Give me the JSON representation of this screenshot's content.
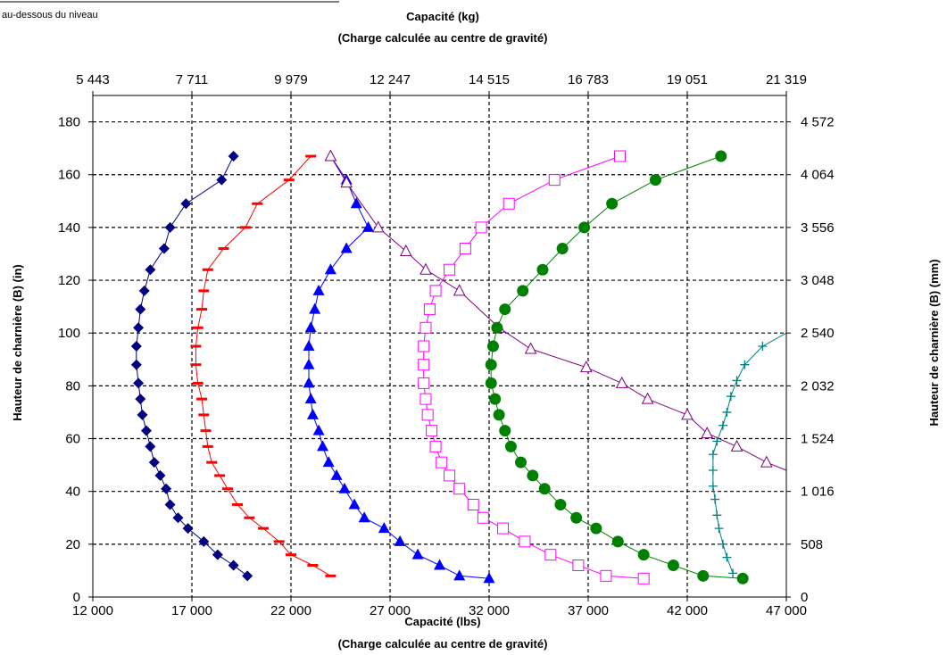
{
  "note": "au-dessous du niveau",
  "chart_data": {
    "type": "scatter",
    "title_top": [
      "Capacité (kg)",
      "(Charge calculée au centre de gravité)"
    ],
    "title_bottom": [
      "Capacité (lbs)",
      "(Charge calculée au centre de gravité)"
    ],
    "ylabel_left": "Hauteur de charnière (B) (in)",
    "ylabel_right": "Hauteur de charnière (B) (mm)",
    "xlim": [
      12000,
      47000
    ],
    "ylim": [
      0,
      190
    ],
    "grid": true,
    "x_ticks": [
      "12 000",
      "17 000",
      "22 000",
      "27 000",
      "32 000",
      "37 000",
      "42 000",
      "47 000"
    ],
    "x_top_ticks": [
      "5 443",
      "7 711",
      "9 979",
      "12 247",
      "14 515",
      "16 783",
      "19 051",
      "21 319"
    ],
    "y_ticks": [
      "0",
      "20",
      "40",
      "60",
      "80",
      "100",
      "120",
      "140",
      "160",
      "180"
    ],
    "y_right_ticks": [
      "0",
      "508",
      "1 016",
      "1 524",
      "2 032",
      "2 540",
      "3 048",
      "3 556",
      "4 064",
      "4 572"
    ],
    "series": [
      {
        "marker": "diamond",
        "color": "#000080",
        "points": [
          [
            19100,
            167
          ],
          [
            18500,
            158
          ],
          [
            16700,
            149
          ],
          [
            15900,
            140
          ],
          [
            15600,
            132
          ],
          [
            14900,
            124
          ],
          [
            14600,
            116
          ],
          [
            14400,
            109
          ],
          [
            14300,
            102
          ],
          [
            14200,
            95
          ],
          [
            14200,
            88
          ],
          [
            14300,
            81
          ],
          [
            14400,
            75
          ],
          [
            14500,
            69
          ],
          [
            14700,
            63
          ],
          [
            14900,
            57
          ],
          [
            15100,
            51
          ],
          [
            15400,
            46
          ],
          [
            15700,
            41
          ],
          [
            15900,
            35
          ],
          [
            16300,
            30
          ],
          [
            16800,
            26
          ],
          [
            17600,
            21
          ],
          [
            18300,
            16
          ],
          [
            19100,
            12
          ],
          [
            19800,
            8
          ]
        ]
      },
      {
        "marker": "dash",
        "color": "#ff0000",
        "points": [
          [
            23000,
            167
          ],
          [
            21900,
            158
          ],
          [
            20300,
            149
          ],
          [
            19700,
            140
          ],
          [
            18600,
            132
          ],
          [
            17800,
            124
          ],
          [
            17600,
            116
          ],
          [
            17500,
            109
          ],
          [
            17300,
            102
          ],
          [
            17200,
            95
          ],
          [
            17200,
            88
          ],
          [
            17300,
            81
          ],
          [
            17500,
            75
          ],
          [
            17600,
            69
          ],
          [
            17700,
            63
          ],
          [
            17800,
            57
          ],
          [
            18000,
            51
          ],
          [
            18400,
            46
          ],
          [
            18800,
            41
          ],
          [
            19300,
            35
          ],
          [
            19900,
            30
          ],
          [
            20600,
            26
          ],
          [
            21400,
            21
          ],
          [
            22000,
            16
          ],
          [
            23100,
            12
          ],
          [
            24000,
            8
          ]
        ]
      },
      {
        "marker": "triangle",
        "color": "#0000ff",
        "points": [
          [
            24000,
            167
          ],
          [
            24800,
            158
          ],
          [
            25300,
            149
          ],
          [
            25900,
            140
          ],
          [
            24800,
            132
          ],
          [
            24000,
            124
          ],
          [
            23400,
            116
          ],
          [
            23200,
            109
          ],
          [
            23000,
            102
          ],
          [
            22900,
            95
          ],
          [
            22900,
            88
          ],
          [
            22900,
            81
          ],
          [
            23000,
            75
          ],
          [
            23100,
            69
          ],
          [
            23400,
            63
          ],
          [
            23600,
            57
          ],
          [
            23900,
            51
          ],
          [
            24300,
            46
          ],
          [
            24700,
            41
          ],
          [
            25200,
            35
          ],
          [
            25700,
            30
          ],
          [
            26700,
            26
          ],
          [
            27500,
            21
          ],
          [
            28400,
            16
          ],
          [
            29500,
            12
          ],
          [
            30500,
            8
          ],
          [
            32000,
            7
          ]
        ]
      },
      {
        "marker": "triangle-open",
        "color": "#800080",
        "points": [
          [
            24000,
            167
          ],
          [
            24800,
            157
          ],
          [
            26400,
            140
          ],
          [
            27800,
            131
          ],
          [
            28800,
            124
          ],
          [
            30500,
            116
          ],
          [
            32500,
            102
          ],
          [
            34100,
            94
          ],
          [
            36900,
            87
          ],
          [
            38700,
            81
          ],
          [
            40000,
            75
          ],
          [
            42000,
            69
          ],
          [
            43000,
            62
          ],
          [
            44500,
            57
          ],
          [
            46000,
            51
          ],
          [
            47000,
            48
          ]
        ]
      },
      {
        "marker": "square-open",
        "color": "#ff00ff",
        "points": [
          [
            38600,
            167
          ],
          [
            35300,
            158
          ],
          [
            33000,
            149
          ],
          [
            31600,
            140
          ],
          [
            30800,
            132
          ],
          [
            30000,
            124
          ],
          [
            29300,
            116
          ],
          [
            29000,
            109
          ],
          [
            28800,
            102
          ],
          [
            28700,
            95
          ],
          [
            28700,
            88
          ],
          [
            28700,
            81
          ],
          [
            28800,
            75
          ],
          [
            28900,
            69
          ],
          [
            29100,
            63
          ],
          [
            29300,
            57
          ],
          [
            29600,
            51
          ],
          [
            30000,
            46
          ],
          [
            30500,
            41
          ],
          [
            31200,
            35
          ],
          [
            31700,
            30
          ],
          [
            32700,
            26
          ],
          [
            33800,
            21
          ],
          [
            35100,
            16
          ],
          [
            36500,
            12
          ],
          [
            37900,
            8
          ],
          [
            39800,
            7
          ]
        ]
      },
      {
        "marker": "circle",
        "color": "#008000",
        "points": [
          [
            43700,
            167
          ],
          [
            40400,
            158
          ],
          [
            38200,
            149
          ],
          [
            36800,
            140
          ],
          [
            35700,
            132
          ],
          [
            34700,
            124
          ],
          [
            33700,
            116
          ],
          [
            32800,
            109
          ],
          [
            32400,
            102
          ],
          [
            32200,
            95
          ],
          [
            32100,
            88
          ],
          [
            32100,
            81
          ],
          [
            32300,
            75
          ],
          [
            32500,
            69
          ],
          [
            32800,
            63
          ],
          [
            33100,
            57
          ],
          [
            33600,
            51
          ],
          [
            34200,
            46
          ],
          [
            34800,
            41
          ],
          [
            35600,
            35
          ],
          [
            36400,
            30
          ],
          [
            37400,
            26
          ],
          [
            38500,
            21
          ],
          [
            39800,
            16
          ],
          [
            41300,
            12
          ],
          [
            42800,
            8
          ],
          [
            44800,
            7
          ]
        ]
      },
      {
        "marker": "plus",
        "color": "#008080",
        "points": [
          [
            47000,
            100
          ],
          [
            45800,
            95
          ],
          [
            44900,
            88
          ],
          [
            44500,
            82
          ],
          [
            44200,
            76
          ],
          [
            44000,
            70
          ],
          [
            43800,
            65
          ],
          [
            43500,
            59
          ],
          [
            43300,
            54
          ],
          [
            43300,
            48
          ],
          [
            43300,
            42
          ],
          [
            43400,
            37
          ],
          [
            43500,
            31
          ],
          [
            43600,
            26
          ],
          [
            43800,
            20
          ],
          [
            44000,
            15
          ],
          [
            44300,
            9
          ]
        ]
      }
    ]
  }
}
